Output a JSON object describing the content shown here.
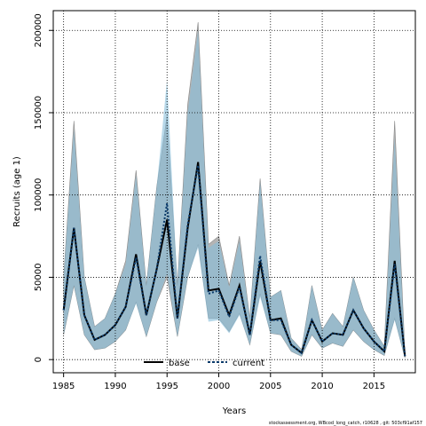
{
  "chart_data": {
    "type": "line",
    "title": "",
    "xlabel": "Years",
    "ylabel": "Recruits (age 1)",
    "xlim": [
      1984,
      2019
    ],
    "ylim": [
      -8000,
      212000
    ],
    "xticks": [
      1985,
      1990,
      1995,
      2000,
      2005,
      2010,
      2015
    ],
    "yticks": [
      0,
      50000,
      100000,
      150000,
      200000
    ],
    "grid": true,
    "legend_position": "bottom-center",
    "x": [
      1985,
      1986,
      1987,
      1988,
      1989,
      1990,
      1991,
      1992,
      1993,
      1994,
      1995,
      1996,
      1997,
      1998,
      1999,
      2000,
      2001,
      2002,
      2003,
      2004,
      2005,
      2006,
      2007,
      2008,
      2009,
      2010,
      2011,
      2012,
      2013,
      2014,
      2015,
      2016,
      2017,
      2018
    ],
    "series": [
      {
        "name": "base",
        "color": "#000000",
        "line_style": "solid",
        "band_color": "#9b9b9b",
        "values": [
          30000,
          80000,
          27000,
          12000,
          15000,
          21000,
          32000,
          64000,
          27000,
          55000,
          85000,
          25000,
          80000,
          120000,
          42000,
          43000,
          27000,
          45000,
          15000,
          60000,
          24000,
          25000,
          9000,
          4000,
          24000,
          11000,
          16000,
          15000,
          30000,
          19000,
          11000,
          5000,
          60000,
          2000
        ],
        "lower": [
          15000,
          45000,
          15000,
          6000,
          7000,
          11000,
          18000,
          35000,
          14000,
          35000,
          50000,
          14000,
          50000,
          70000,
          25000,
          25000,
          17000,
          28000,
          9000,
          40000,
          16000,
          15000,
          5000,
          2000,
          15000,
          7000,
          10000,
          8000,
          18000,
          11000,
          6000,
          2500,
          25000,
          1000
        ],
        "upper": [
          50000,
          145000,
          50000,
          20000,
          25000,
          40000,
          60000,
          115000,
          45000,
          105000,
          148000,
          45000,
          155000,
          205000,
          70000,
          75000,
          45000,
          75000,
          25000,
          110000,
          38000,
          42000,
          13000,
          6000,
          45000,
          18000,
          28000,
          20000,
          50000,
          30000,
          18000,
          8000,
          145000,
          3500
        ]
      },
      {
        "name": "current",
        "color": "#0a3a6a",
        "line_style": "dashed",
        "band_color": "#87bedb",
        "values": [
          30000,
          80000,
          27000,
          12000,
          15000,
          21000,
          32000,
          62000,
          27000,
          55000,
          95000,
          25000,
          82000,
          118000,
          40000,
          42000,
          26000,
          44000,
          15000,
          63000,
          24000,
          24000,
          9000,
          4000,
          24000,
          11000,
          16000,
          15000,
          30000,
          19000,
          11000,
          5000,
          58000,
          2000
        ],
        "lower": [
          15000,
          45000,
          15000,
          6000,
          7000,
          11000,
          18000,
          34000,
          14000,
          35000,
          52000,
          14000,
          50000,
          68000,
          23000,
          24000,
          16000,
          27000,
          9000,
          38000,
          16000,
          15000,
          5000,
          2000,
          15000,
          7000,
          10000,
          8000,
          18000,
          11000,
          6000,
          2500,
          24000,
          1000
        ],
        "upper": [
          50000,
          140000,
          50000,
          20000,
          25000,
          40000,
          58000,
          112000,
          45000,
          105000,
          170000,
          45000,
          150000,
          200000,
          68000,
          72000,
          44000,
          72000,
          25000,
          108000,
          38000,
          42000,
          13000,
          6000,
          45000,
          18000,
          28000,
          20000,
          50000,
          30000,
          18000,
          8000,
          135000,
          3500
        ]
      }
    ]
  },
  "footnote": "stockassessment.org, WBcod_long_catch, r10628 , git: 503cf91af157"
}
